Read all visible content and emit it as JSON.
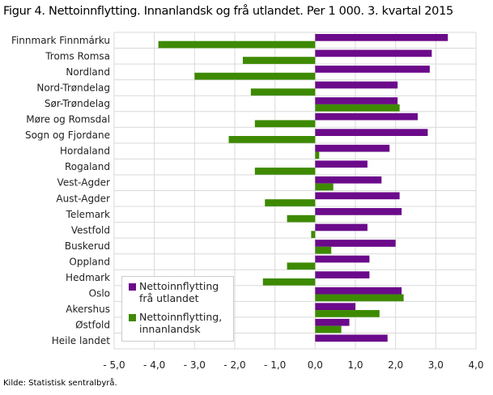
{
  "chart_data": {
    "type": "bar",
    "orientation": "horizontal",
    "title": "Figur 4. Nettoinnflytting. Innanlandsk og frå utlandet. Per 1 000. 3. kvartal 2015",
    "source": "Kilde: Statistisk sentralbyrå.",
    "categories": [
      "Finnmark Finnmárku",
      "Troms Romsa",
      "Nordland",
      "Nord-Trøndelag",
      "Sør-Trøndelag",
      "Møre og Romsdal",
      "Sogn og Fjordane",
      "Hordaland",
      "Rogaland",
      "Vest-Agder",
      "Aust-Agder",
      "Telemark",
      "Vestfold",
      "Buskerud",
      "Oppland",
      "Hedmark",
      "Oslo",
      "Akershus",
      "Østfold",
      "Heile landet"
    ],
    "series": [
      {
        "name": "Nettoinnflytting frå utlandet",
        "legend_lines": [
          "Nettoinnflytting",
          "frå utlandet"
        ],
        "color": "#6b0a8a",
        "values": [
          3.3,
          2.9,
          2.85,
          2.05,
          2.05,
          2.55,
          2.8,
          1.85,
          1.3,
          1.65,
          2.1,
          2.15,
          1.3,
          2.0,
          1.35,
          1.35,
          2.15,
          1.0,
          0.85,
          1.8
        ]
      },
      {
        "name": "Nettoinnflytting, innanlandsk",
        "legend_lines": [
          "Nettoinnflytting,",
          "innanlandsk"
        ],
        "color": "#3d8a00",
        "values": [
          -3.9,
          -1.8,
          -3.0,
          -1.6,
          2.1,
          -1.5,
          -2.15,
          0.1,
          -1.5,
          0.45,
          -1.25,
          -0.7,
          -0.1,
          0.4,
          -0.7,
          -1.3,
          2.2,
          1.6,
          0.65,
          0
        ]
      }
    ],
    "xlim": [
      -5,
      4
    ],
    "xticks": [
      -5,
      -4,
      -3,
      -2,
      -1,
      0,
      1,
      2,
      3,
      4
    ],
    "xtick_labels": [
      "- 5,0",
      "- 4,0",
      "- 3,0",
      "- 2,0",
      "- 1,0",
      "0,0",
      "1,0",
      "2,0",
      "3,0",
      "4,0"
    ],
    "grid": true,
    "legend_position": "bottom-left"
  }
}
